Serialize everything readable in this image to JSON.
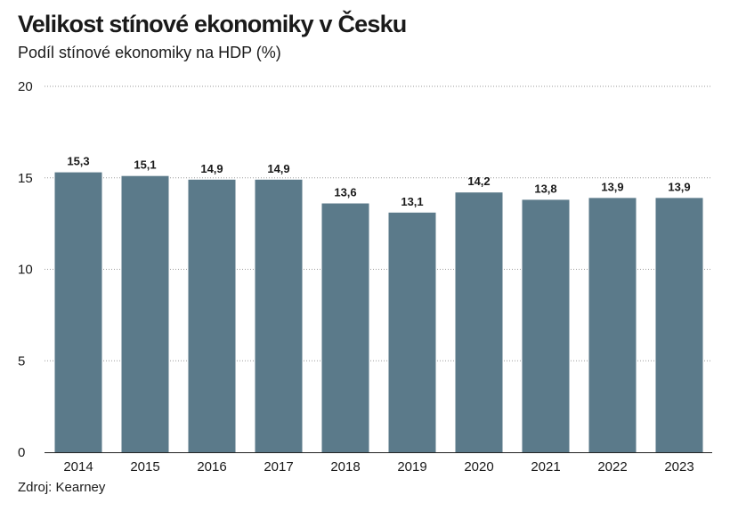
{
  "title": "Velikost stínové ekonomiky v Česku",
  "subtitle": "Podíl stínové ekonomiky na HDP (%)",
  "source": "Zdroj: Kearney",
  "colors": {
    "bar": "#5b7a8a",
    "grid": "#9a9a9a",
    "axis": "#222222",
    "text": "#1a1a1a"
  },
  "chart_data": {
    "type": "bar",
    "title": "Velikost stínové ekonomiky v Česku",
    "subtitle": "Podíl stínové ekonomiky na HDP (%)",
    "xlabel": "",
    "ylabel": "",
    "categories": [
      "2014",
      "2015",
      "2016",
      "2017",
      "2018",
      "2019",
      "2020",
      "2021",
      "2022",
      "2023"
    ],
    "values": [
      15.3,
      15.1,
      14.9,
      14.9,
      13.6,
      13.1,
      14.2,
      13.8,
      13.9,
      13.9
    ],
    "value_labels": [
      "15,3",
      "15,1",
      "14,9",
      "14,9",
      "13,6",
      "13,1",
      "14,2",
      "13,8",
      "13,9",
      "13,9"
    ],
    "ylim": [
      0,
      20
    ],
    "yticks": [
      0,
      5,
      10,
      15,
      20
    ],
    "grid": true,
    "grid_style": "dotted",
    "legend": "none"
  }
}
